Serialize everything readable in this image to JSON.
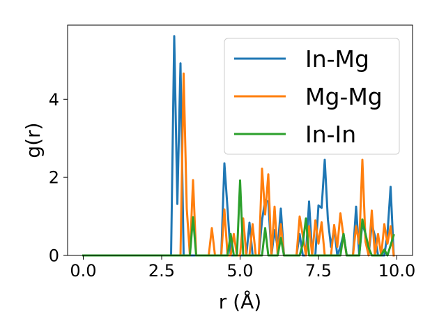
{
  "chart_data": {
    "type": "line",
    "title": "",
    "xlabel": "r (Å)",
    "ylabel": "g(r)",
    "xlim": [
      -0.5,
      10.5
    ],
    "ylim": [
      0,
      5.9
    ],
    "xticks": [
      0.0,
      2.5,
      5.0,
      7.5,
      10.0
    ],
    "xtick_labels": [
      "0.0",
      "2.5",
      "5.0",
      "7.5",
      "10.0"
    ],
    "yticks": [
      0,
      2,
      4
    ],
    "ytick_labels": [
      "0",
      "2",
      "4"
    ],
    "grid": false,
    "legend_position": "top-right",
    "series": [
      {
        "name": "In-Mg",
        "color": "#1f77b4",
        "points": [
          [
            0,
            0
          ],
          [
            2.8,
            0
          ],
          [
            2.9,
            5.62
          ],
          [
            3.0,
            1.32
          ],
          [
            3.1,
            4.92
          ],
          [
            3.2,
            0
          ],
          [
            4.4,
            0
          ],
          [
            4.5,
            2.36
          ],
          [
            4.6,
            1.2
          ],
          [
            4.7,
            0
          ],
          [
            5.2,
            0
          ],
          [
            5.3,
            0.84
          ],
          [
            5.4,
            0
          ],
          [
            5.6,
            0
          ],
          [
            5.7,
            0.9
          ],
          [
            5.8,
            1.42
          ],
          [
            5.9,
            1.38
          ],
          [
            6.0,
            0
          ],
          [
            6.1,
            0.65
          ],
          [
            6.2,
            0.2
          ],
          [
            6.3,
            1.2
          ],
          [
            6.4,
            0
          ],
          [
            6.8,
            0
          ],
          [
            6.9,
            0.55
          ],
          [
            7.0,
            0
          ],
          [
            7.1,
            0
          ],
          [
            7.2,
            1.38
          ],
          [
            7.3,
            0
          ],
          [
            7.4,
            0
          ],
          [
            7.5,
            1.28
          ],
          [
            7.6,
            1.22
          ],
          [
            7.7,
            2.45
          ],
          [
            7.8,
            0.92
          ],
          [
            7.9,
            0.22
          ],
          [
            8.0,
            0.7
          ],
          [
            8.1,
            0
          ],
          [
            8.2,
            0.22
          ],
          [
            8.3,
            0.55
          ],
          [
            8.4,
            0
          ],
          [
            8.6,
            0
          ],
          [
            8.7,
            1.25
          ],
          [
            8.8,
            0
          ],
          [
            8.9,
            0.82
          ],
          [
            9.0,
            0.55
          ],
          [
            9.1,
            0
          ],
          [
            9.2,
            0.8
          ],
          [
            9.3,
            0.5
          ],
          [
            9.4,
            0
          ],
          [
            9.6,
            0
          ],
          [
            9.7,
            0.55
          ],
          [
            9.8,
            1.76
          ],
          [
            9.9,
            0
          ]
        ]
      },
      {
        "name": "Mg-Mg",
        "color": "#ff7f0e",
        "points": [
          [
            0,
            0
          ],
          [
            3.1,
            0
          ],
          [
            3.2,
            4.66
          ],
          [
            3.3,
            1.2
          ],
          [
            3.4,
            0
          ],
          [
            3.5,
            1.93
          ],
          [
            3.6,
            0
          ],
          [
            4.0,
            0
          ],
          [
            4.1,
            0.7
          ],
          [
            4.2,
            0
          ],
          [
            4.4,
            0
          ],
          [
            4.5,
            1.18
          ],
          [
            4.6,
            0
          ],
          [
            4.7,
            0
          ],
          [
            4.8,
            0.55
          ],
          [
            4.9,
            0
          ],
          [
            5.0,
            0
          ],
          [
            5.1,
            0.95
          ],
          [
            5.2,
            0
          ],
          [
            5.3,
            0
          ],
          [
            5.4,
            0.8
          ],
          [
            5.5,
            0
          ],
          [
            5.6,
            0
          ],
          [
            5.7,
            2.22
          ],
          [
            5.8,
            1.05
          ],
          [
            5.9,
            2.08
          ],
          [
            6.0,
            0
          ],
          [
            6.1,
            1.25
          ],
          [
            6.2,
            0
          ],
          [
            6.3,
            0.8
          ],
          [
            6.4,
            0
          ],
          [
            6.8,
            0
          ],
          [
            6.9,
            1.0
          ],
          [
            7.0,
            0.5
          ],
          [
            7.1,
            0
          ],
          [
            7.2,
            0.75
          ],
          [
            7.3,
            0
          ],
          [
            7.4,
            0.9
          ],
          [
            7.5,
            0.3
          ],
          [
            7.6,
            0.85
          ],
          [
            7.7,
            0
          ],
          [
            7.9,
            0
          ],
          [
            8.0,
            0.78
          ],
          [
            8.1,
            0.22
          ],
          [
            8.2,
            1.08
          ],
          [
            8.3,
            0.48
          ],
          [
            8.4,
            0
          ],
          [
            8.6,
            0
          ],
          [
            8.7,
            0.75
          ],
          [
            8.8,
            0.3
          ],
          [
            8.9,
            2.45
          ],
          [
            9.0,
            0.35
          ],
          [
            9.1,
            0
          ],
          [
            9.2,
            1.15
          ],
          [
            9.3,
            0
          ],
          [
            9.4,
            0.55
          ],
          [
            9.5,
            0
          ],
          [
            9.6,
            0.8
          ],
          [
            9.7,
            0.3
          ],
          [
            9.8,
            0.75
          ],
          [
            9.9,
            0
          ]
        ]
      },
      {
        "name": "In-In",
        "color": "#2ca02c",
        "points": [
          [
            0,
            0
          ],
          [
            3.4,
            0
          ],
          [
            3.5,
            0.98
          ],
          [
            3.6,
            0
          ],
          [
            4.6,
            0
          ],
          [
            4.7,
            0.55
          ],
          [
            4.8,
            0
          ],
          [
            4.9,
            0
          ],
          [
            5.0,
            1.92
          ],
          [
            5.1,
            0
          ],
          [
            5.7,
            0
          ],
          [
            5.8,
            0.7
          ],
          [
            5.9,
            0
          ],
          [
            6.2,
            0
          ],
          [
            6.3,
            0.45
          ],
          [
            6.4,
            0
          ],
          [
            6.9,
            0
          ],
          [
            7.0,
            0.3
          ],
          [
            7.1,
            0.95
          ],
          [
            7.2,
            0
          ],
          [
            8.2,
            0
          ],
          [
            8.3,
            0.55
          ],
          [
            8.4,
            0
          ],
          [
            8.8,
            0
          ],
          [
            8.9,
            0.92
          ],
          [
            9.0,
            0.55
          ],
          [
            9.1,
            0.2
          ],
          [
            9.2,
            0
          ],
          [
            9.5,
            0
          ],
          [
            9.6,
            0.15
          ],
          [
            9.7,
            0
          ],
          [
            9.9,
            0.52
          ]
        ]
      }
    ]
  }
}
